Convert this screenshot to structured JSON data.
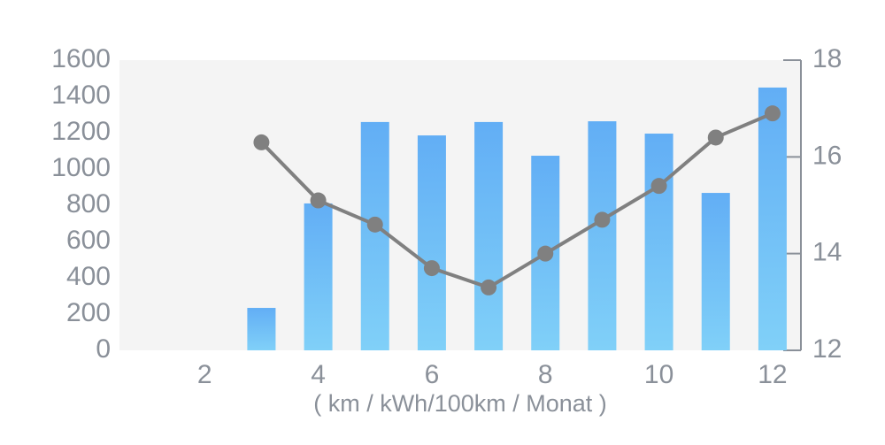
{
  "chart_data": {
    "type": "bar",
    "x_label": "( km / kWh/100km / Monat )",
    "x": [
      1,
      2,
      3,
      4,
      5,
      6,
      7,
      8,
      9,
      10,
      11,
      12
    ],
    "xlim": [
      0.5,
      12.5
    ],
    "xticks": [
      2,
      4,
      6,
      8,
      10,
      12
    ],
    "ylim": [
      0,
      1600
    ],
    "yticks": [
      0,
      200,
      400,
      600,
      800,
      1000,
      1200,
      1400,
      1600
    ],
    "y2lim": [
      12,
      18
    ],
    "y2ticks": [
      12,
      14,
      16,
      18
    ],
    "series": [
      {
        "type": "bar",
        "color": "#62aef5",
        "values": [
          null,
          null,
          234,
          810,
          1259,
          1185,
          1259,
          1073,
          1263,
          1195,
          868,
          1449
        ]
      },
      {
        "type": "line",
        "axis": "y2",
        "color": "#808080",
        "values": [
          null,
          null,
          16.3,
          15.1,
          14.6,
          13.7,
          13.3,
          14.0,
          14.7,
          15.4,
          16.4,
          16.9
        ]
      }
    ]
  }
}
